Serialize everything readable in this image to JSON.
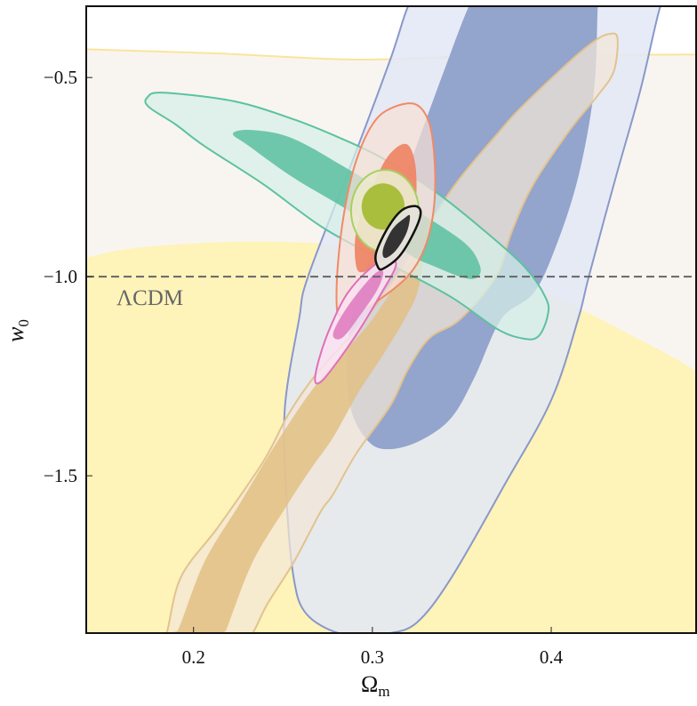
{
  "chart_data": {
    "type": "contour",
    "xlabel": "Ω",
    "xlabel_sub": "m",
    "ylabel": "w",
    "ylabel_sub": "0",
    "xlim": [
      0.14,
      0.481
    ],
    "ylim": [
      -1.895,
      -0.321
    ],
    "xticks": [
      0.2,
      0.3,
      0.4
    ],
    "xtick_labels": [
      "0.2",
      "0.3",
      "0.4"
    ],
    "yticks": [
      -0.5,
      -1.0,
      -1.5
    ],
    "ytick_labels": [
      "−0.5",
      "−1.0",
      "−1.5"
    ],
    "reference_line": {
      "y": -1.0,
      "style": "dashed",
      "color": "#666666",
      "label": "ΛCDM"
    },
    "grid": false,
    "contours": [
      {
        "id": "yellow-2sigma",
        "fill": "#f8f5f1",
        "stroke": "#fbe49a",
        "points": [
          [
            0.12,
            -0.43
          ],
          [
            0.14,
            -0.429
          ],
          [
            0.216,
            -0.44
          ],
          [
            0.291,
            -0.455
          ],
          [
            0.365,
            -0.446
          ],
          [
            0.482,
            -0.442
          ],
          [
            0.5,
            -0.442
          ],
          [
            0.5,
            -2.0
          ],
          [
            0.12,
            -2.0
          ]
        ]
      },
      {
        "id": "yellow-1sigma",
        "fill": "#fef3b9",
        "stroke": "none",
        "points": [
          [
            0.12,
            -0.96
          ],
          [
            0.14,
            -0.953
          ],
          [
            0.166,
            -0.929
          ],
          [
            0.216,
            -0.913
          ],
          [
            0.266,
            -0.915
          ],
          [
            0.315,
            -0.931
          ],
          [
            0.365,
            -0.987
          ],
          [
            0.4,
            -1.047
          ],
          [
            0.44,
            -1.136
          ],
          [
            0.482,
            -1.239
          ],
          [
            0.5,
            -1.29
          ],
          [
            0.5,
            -2.0
          ],
          [
            0.12,
            -2.0
          ]
        ]
      },
      {
        "id": "blue-2sigma",
        "fill": "rgba(226,232,246,0.85)",
        "stroke": "#8a98c9",
        "points": [
          [
            0.465,
            -0.261
          ],
          [
            0.461,
            -0.321
          ],
          [
            0.45,
            -0.529
          ],
          [
            0.436,
            -0.752
          ],
          [
            0.421,
            -1.0
          ],
          [
            0.415,
            -1.107
          ],
          [
            0.4,
            -1.31
          ],
          [
            0.374,
            -1.522
          ],
          [
            0.344,
            -1.757
          ],
          [
            0.325,
            -1.868
          ],
          [
            0.31,
            -1.895
          ],
          [
            0.3,
            -1.924
          ],
          [
            0.281,
            -1.913
          ],
          [
            0.263,
            -1.846
          ],
          [
            0.256,
            -1.757
          ],
          [
            0.252,
            -1.556
          ],
          [
            0.251,
            -1.333
          ],
          [
            0.259,
            -1.107
          ],
          [
            0.264,
            -1.0
          ],
          [
            0.289,
            -0.708
          ],
          [
            0.31,
            -0.455
          ],
          [
            0.32,
            -0.321
          ],
          [
            0.325,
            -0.261
          ]
        ]
      },
      {
        "id": "blue-1sigma",
        "fill": "#93a4cd",
        "stroke": "none",
        "points": [
          [
            0.358,
            -0.261
          ],
          [
            0.427,
            -0.261
          ],
          [
            0.426,
            -0.321
          ],
          [
            0.424,
            -0.529
          ],
          [
            0.415,
            -0.752
          ],
          [
            0.402,
            -0.931
          ],
          [
            0.39,
            -1.042
          ],
          [
            0.372,
            -1.107
          ],
          [
            0.357,
            -1.254
          ],
          [
            0.344,
            -1.355
          ],
          [
            0.327,
            -1.411
          ],
          [
            0.31,
            -1.433
          ],
          [
            0.298,
            -1.415
          ],
          [
            0.288,
            -1.333
          ],
          [
            0.286,
            -1.199
          ],
          [
            0.291,
            -1.042
          ],
          [
            0.305,
            -0.886
          ],
          [
            0.318,
            -0.752
          ],
          [
            0.329,
            -0.618
          ],
          [
            0.34,
            -0.484
          ],
          [
            0.354,
            -0.321
          ]
        ]
      },
      {
        "id": "tan-2sigma",
        "fill": "rgba(242,230,215,0.72)",
        "stroke": "#e2c38e",
        "points": [
          [
            0.432,
            -0.391
          ],
          [
            0.437,
            -0.4
          ],
          [
            0.435,
            -0.484
          ],
          [
            0.426,
            -0.545
          ],
          [
            0.41,
            -0.634
          ],
          [
            0.39,
            -0.768
          ],
          [
            0.378,
            -0.886
          ],
          [
            0.369,
            -1.0
          ],
          [
            0.349,
            -1.107
          ],
          [
            0.332,
            -1.154
          ],
          [
            0.32,
            -1.232
          ],
          [
            0.31,
            -1.324
          ],
          [
            0.291,
            -1.444
          ],
          [
            0.278,
            -1.547
          ],
          [
            0.271,
            -1.591
          ],
          [
            0.256,
            -1.717
          ],
          [
            0.241,
            -1.824
          ],
          [
            0.233,
            -1.895
          ],
          [
            0.228,
            -1.935
          ],
          [
            0.182,
            -1.935
          ],
          [
            0.185,
            -1.895
          ],
          [
            0.193,
            -1.754
          ],
          [
            0.214,
            -1.627
          ],
          [
            0.239,
            -1.464
          ],
          [
            0.253,
            -1.346
          ],
          [
            0.268,
            -1.248
          ],
          [
            0.291,
            -1.132
          ],
          [
            0.315,
            -0.991
          ],
          [
            0.344,
            -0.783
          ],
          [
            0.37,
            -0.641
          ],
          [
            0.385,
            -0.567
          ],
          [
            0.413,
            -0.449
          ],
          [
            0.425,
            -0.406
          ]
        ]
      },
      {
        "id": "tan-1sigma",
        "fill": "rgba(226,192,132,0.85)",
        "stroke": "none",
        "points": [
          [
            0.186,
            -1.935
          ],
          [
            0.191,
            -1.89
          ],
          [
            0.206,
            -1.717
          ],
          [
            0.226,
            -1.569
          ],
          [
            0.246,
            -1.42
          ],
          [
            0.266,
            -1.286
          ],
          [
            0.286,
            -1.181
          ],
          [
            0.3,
            -1.107
          ],
          [
            0.313,
            -1.02
          ],
          [
            0.323,
            -0.953
          ],
          [
            0.328,
            -0.964
          ],
          [
            0.325,
            -1.042
          ],
          [
            0.318,
            -1.107
          ],
          [
            0.305,
            -1.203
          ],
          [
            0.292,
            -1.292
          ],
          [
            0.278,
            -1.404
          ],
          [
            0.266,
            -1.48
          ],
          [
            0.253,
            -1.569
          ],
          [
            0.233,
            -1.717
          ],
          [
            0.218,
            -1.89
          ],
          [
            0.216,
            -1.935
          ]
        ]
      },
      {
        "id": "teal-2sigma",
        "fill": "rgba(214,240,232,0.72)",
        "stroke": "#5cc2a0",
        "points": [
          [
            0.174,
            -0.551
          ],
          [
            0.183,
            -0.538
          ],
          [
            0.223,
            -0.56
          ],
          [
            0.256,
            -0.605
          ],
          [
            0.281,
            -0.65
          ],
          [
            0.305,
            -0.701
          ],
          [
            0.335,
            -0.786
          ],
          [
            0.36,
            -0.875
          ],
          [
            0.385,
            -0.975
          ],
          [
            0.397,
            -1.054
          ],
          [
            0.398,
            -1.098
          ],
          [
            0.393,
            -1.149
          ],
          [
            0.385,
            -1.156
          ],
          [
            0.37,
            -1.132
          ],
          [
            0.344,
            -1.051
          ],
          [
            0.31,
            -0.969
          ],
          [
            0.273,
            -0.879
          ],
          [
            0.239,
            -0.768
          ],
          [
            0.206,
            -0.672
          ],
          [
            0.19,
            -0.618
          ],
          [
            0.175,
            -0.574
          ]
        ]
      },
      {
        "id": "teal-1sigma",
        "fill": "rgba(98,194,163,0.9)",
        "stroke": "none",
        "points": [
          [
            0.222,
            -0.641
          ],
          [
            0.233,
            -0.632
          ],
          [
            0.256,
            -0.654
          ],
          [
            0.289,
            -0.737
          ],
          [
            0.327,
            -0.841
          ],
          [
            0.352,
            -0.917
          ],
          [
            0.36,
            -0.971
          ],
          [
            0.359,
            -1.0
          ],
          [
            0.352,
            -1.004
          ],
          [
            0.335,
            -0.975
          ],
          [
            0.319,
            -0.94
          ],
          [
            0.289,
            -0.841
          ],
          [
            0.256,
            -0.752
          ],
          [
            0.231,
            -0.672
          ]
        ]
      },
      {
        "id": "red-2sigma",
        "fill": "rgba(250,224,214,0.7)",
        "stroke": "#f08a66",
        "points": [
          [
            0.324,
            -0.567
          ],
          [
            0.332,
            -0.618
          ],
          [
            0.335,
            -0.73
          ],
          [
            0.334,
            -0.841
          ],
          [
            0.329,
            -0.931
          ],
          [
            0.32,
            -0.998
          ],
          [
            0.305,
            -1.054
          ],
          [
            0.291,
            -1.091
          ],
          [
            0.282,
            -1.098
          ],
          [
            0.28,
            -1.065
          ],
          [
            0.281,
            -0.953
          ],
          [
            0.285,
            -0.819
          ],
          [
            0.291,
            -0.708
          ],
          [
            0.3,
            -0.618
          ],
          [
            0.31,
            -0.578
          ]
        ]
      },
      {
        "id": "red-1sigma",
        "fill": "rgba(238,130,98,0.9)",
        "stroke": "none",
        "points": [
          [
            0.319,
            -0.667
          ],
          [
            0.324,
            -0.719
          ],
          [
            0.324,
            -0.819
          ],
          [
            0.318,
            -0.897
          ],
          [
            0.305,
            -0.953
          ],
          [
            0.296,
            -0.987
          ],
          [
            0.291,
            -0.975
          ],
          [
            0.291,
            -0.886
          ],
          [
            0.3,
            -0.775
          ],
          [
            0.309,
            -0.696
          ]
        ]
      },
      {
        "id": "pink-2sigma",
        "fill": "rgba(249,226,241,0.85)",
        "stroke": "#e070b8",
        "points": [
          [
            0.268,
            -1.263
          ],
          [
            0.27,
            -1.21
          ],
          [
            0.276,
            -1.132
          ],
          [
            0.286,
            -1.042
          ],
          [
            0.3,
            -0.975
          ],
          [
            0.31,
            -0.953
          ],
          [
            0.313,
            -0.975
          ],
          [
            0.305,
            -1.042
          ],
          [
            0.293,
            -1.132
          ],
          [
            0.281,
            -1.21
          ],
          [
            0.272,
            -1.261
          ]
        ]
      },
      {
        "id": "pink-1sigma",
        "fill": "rgba(224,125,192,0.9)",
        "stroke": "none",
        "points": [
          [
            0.278,
            -1.143
          ],
          [
            0.286,
            -1.076
          ],
          [
            0.3,
            -0.998
          ],
          [
            0.306,
            -0.987
          ],
          [
            0.303,
            -1.031
          ],
          [
            0.293,
            -1.098
          ],
          [
            0.283,
            -1.154
          ]
        ]
      },
      {
        "id": "lime-2sigma",
        "fill": "rgba(236,233,204,0.92)",
        "stroke": "#a8d060",
        "ellipse": {
          "center": [
            0.307,
            -0.835
          ],
          "semi_axes": [
            0.0189,
            0.103
          ]
        }
      },
      {
        "id": "lime-1sigma",
        "fill": "#a9be3c",
        "stroke": "none",
        "ellipse": {
          "center": [
            0.306,
            -0.824
          ],
          "semi_axes": [
            0.012,
            0.058
          ]
        }
      },
      {
        "id": "black-2sigma",
        "fill": "rgba(228,226,218,0.95)",
        "stroke": "#111111",
        "points": [
          [
            0.324,
            -0.823
          ],
          [
            0.327,
            -0.841
          ],
          [
            0.323,
            -0.891
          ],
          [
            0.315,
            -0.949
          ],
          [
            0.306,
            -0.98
          ],
          [
            0.303,
            -0.975
          ],
          [
            0.302,
            -0.942
          ],
          [
            0.308,
            -0.882
          ],
          [
            0.316,
            -0.835
          ]
        ]
      },
      {
        "id": "black-1sigma",
        "fill": "#333333",
        "stroke": "none",
        "points": [
          [
            0.321,
            -0.848
          ],
          [
            0.319,
            -0.891
          ],
          [
            0.313,
            -0.935
          ],
          [
            0.307,
            -0.953
          ],
          [
            0.306,
            -0.931
          ],
          [
            0.311,
            -0.882
          ],
          [
            0.318,
            -0.853
          ]
        ]
      }
    ]
  }
}
